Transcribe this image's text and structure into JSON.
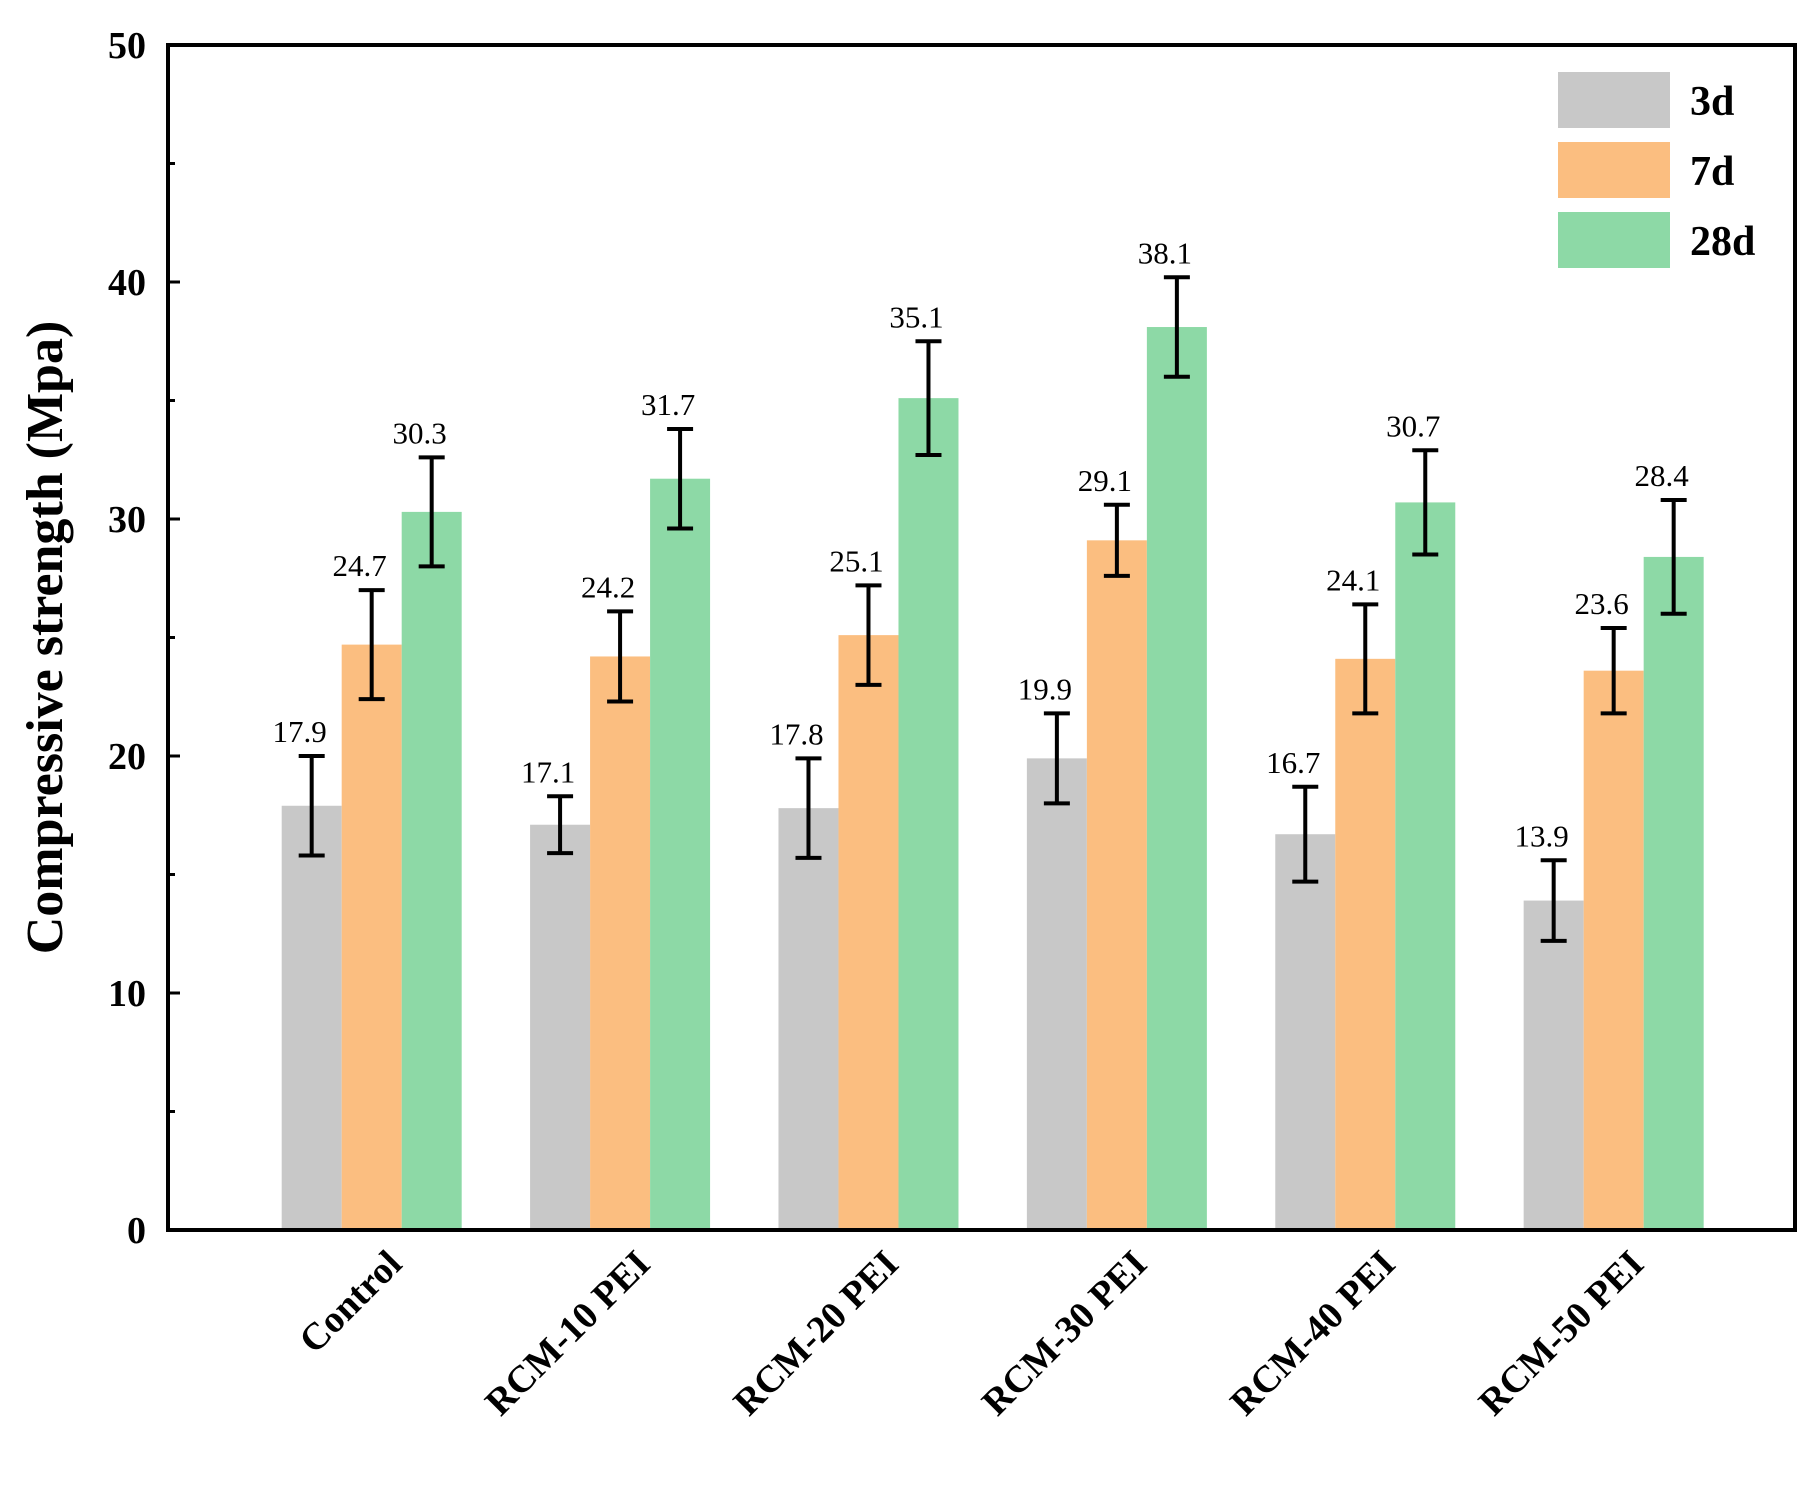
{
  "chart_data": {
    "type": "bar",
    "title": "",
    "xlabel": "",
    "ylabel": "Compressive strength (Mpa)",
    "ylim": [
      0,
      50
    ],
    "yticks": [
      0,
      10,
      20,
      30,
      40,
      50
    ],
    "categories": [
      "Control",
      "RCM-10 PEI",
      "RCM-20 PEI",
      "RCM-30 PEI",
      "RCM-40 PEI",
      "RCM-50 PEI"
    ],
    "series": [
      {
        "name": "3d",
        "color": "#c8c8c8",
        "values": [
          17.9,
          17.1,
          17.8,
          19.9,
          16.7,
          13.9
        ],
        "labels": [
          "17.9",
          "17.1",
          "17.8",
          "19.9",
          "16.7",
          "13.9"
        ],
        "err_low": [
          15.8,
          15.9,
          15.7,
          18.0,
          14.7,
          12.2
        ],
        "err_high": [
          20.0,
          18.3,
          19.9,
          21.8,
          18.7,
          15.6
        ]
      },
      {
        "name": "7d",
        "color": "#fbbe80",
        "values": [
          24.7,
          24.2,
          25.1,
          29.1,
          24.1,
          23.6
        ],
        "labels": [
          "24.7",
          "24.2",
          "25.1",
          "29.1",
          "24.1",
          "23.6"
        ],
        "err_low": [
          22.4,
          22.3,
          23.0,
          27.6,
          21.8,
          21.8
        ],
        "err_high": [
          27.0,
          26.1,
          27.2,
          30.6,
          26.4,
          25.4
        ]
      },
      {
        "name": "28d",
        "color": "#8dd9a6",
        "values": [
          30.3,
          31.7,
          35.1,
          38.1,
          30.7,
          28.4
        ],
        "labels": [
          "30.3",
          "31.7",
          "35.1",
          "38.1",
          "30.7",
          "28.4"
        ],
        "err_low": [
          28.0,
          29.6,
          32.7,
          36.0,
          28.5,
          26.0
        ],
        "err_high": [
          32.6,
          33.8,
          37.5,
          40.2,
          32.9,
          30.8
        ]
      }
    ],
    "legend": {
      "position": "top-right"
    },
    "grid": false
  }
}
